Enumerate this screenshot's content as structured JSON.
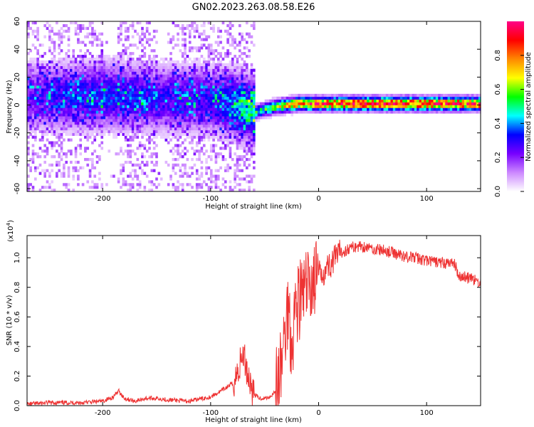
{
  "title": "GN02.2023.263.08.58.E26",
  "chart_data": [
    {
      "type": "heatmap",
      "xlabel": "Height of straight line (km)",
      "ylabel": "Frequency (Hz)",
      "xlim": [
        -270,
        150
      ],
      "ylim": [
        -62,
        60
      ],
      "xticks": [
        -200,
        -100,
        0,
        100
      ],
      "yticks": [
        60,
        40,
        20,
        0,
        -20,
        -40,
        -60
      ],
      "colorbar": {
        "label": "Normalized spectral amplitude",
        "range": [
          0.0,
          1.0
        ],
        "ticks": [
          0.0,
          0.2,
          0.4,
          0.6,
          0.8
        ],
        "colormap": [
          "#ffffff",
          "#cc88ff",
          "#7700ff",
          "#0000ff",
          "#00ffff",
          "#00ff00",
          "#ffff00",
          "#ff8800",
          "#ff0000",
          "#ff0088"
        ]
      },
      "ridge": {
        "x": [
          -270,
          -200,
          -150,
          -100,
          -80,
          -60,
          -50,
          -40,
          -30,
          -20,
          -10,
          0,
          50,
          100,
          150
        ],
        "frequency": [
          5,
          6,
          4,
          3,
          0,
          -6,
          -4,
          -2,
          -1,
          0,
          0,
          0,
          0,
          0,
          0
        ],
        "peak_amplitude": [
          0.25,
          0.35,
          0.3,
          0.3,
          0.4,
          0.5,
          0.55,
          0.65,
          0.75,
          0.85,
          0.9,
          0.92,
          0.95,
          0.95,
          0.9
        ]
      }
    },
    {
      "type": "line",
      "xlabel": "Height of straight line (km)",
      "ylabel": "SNR (10 * v/v)",
      "scale_label": "(x10",
      "scale_exp": "4",
      "xlim": [
        -270,
        150
      ],
      "ylim": [
        0.0,
        1.15
      ],
      "xticks": [
        -200,
        -100,
        0,
        100
      ],
      "yticks": [
        0.0,
        0.2,
        0.4,
        0.6,
        0.8,
        1.0
      ],
      "line_color": "#ee3333",
      "x": [
        -270,
        -250,
        -220,
        -200,
        -190,
        -185,
        -180,
        -170,
        -160,
        -150,
        -140,
        -120,
        -100,
        -90,
        -80,
        -75,
        -72,
        -70,
        -68,
        -65,
        -60,
        -55,
        -50,
        -45,
        -40,
        -35,
        -30,
        -28,
        -25,
        -22,
        -20,
        -15,
        -10,
        -5,
        0,
        10,
        20,
        30,
        40,
        50,
        60,
        70,
        80,
        90,
        100,
        110,
        120,
        125,
        130,
        140,
        150
      ],
      "y": [
        0.01,
        0.02,
        0.02,
        0.03,
        0.06,
        0.1,
        0.05,
        0.03,
        0.05,
        0.05,
        0.04,
        0.03,
        0.06,
        0.1,
        0.15,
        0.22,
        0.3,
        0.35,
        0.3,
        0.2,
        0.08,
        0.05,
        0.05,
        0.06,
        0.1,
        0.25,
        0.55,
        0.7,
        0.4,
        0.65,
        0.7,
        0.75,
        0.8,
        0.85,
        0.88,
        0.95,
        1.03,
        1.07,
        1.08,
        1.06,
        1.05,
        1.03,
        1.01,
        1.0,
        0.98,
        0.97,
        0.96,
        0.97,
        0.88,
        0.86,
        0.83
      ]
    }
  ]
}
